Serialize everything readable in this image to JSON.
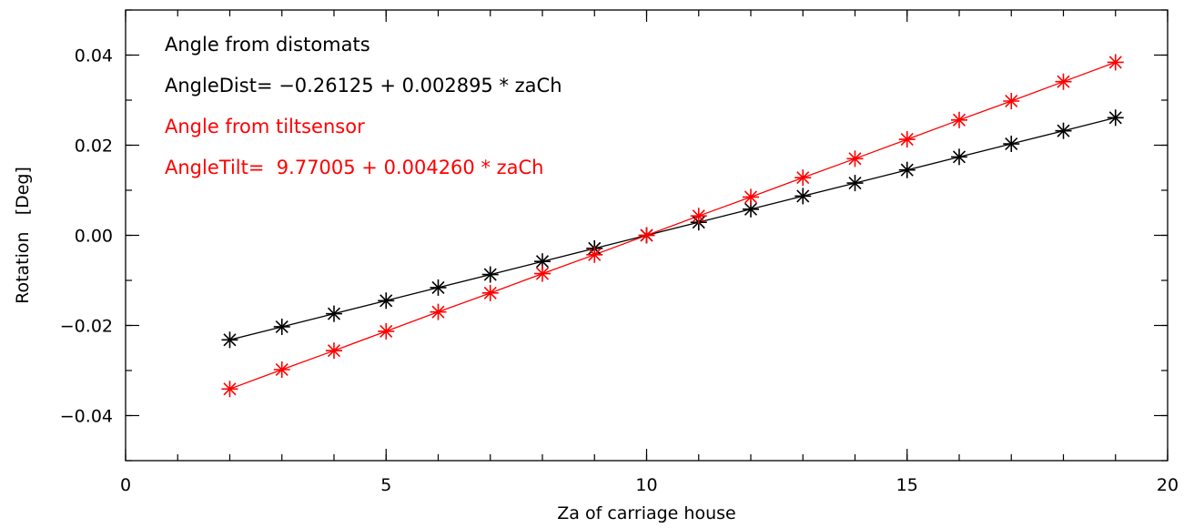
{
  "chart_data": {
    "type": "scatter",
    "title": "",
    "xlabel": "Za of carriage house",
    "ylabel": "Rotation   [Deg]",
    "xlim": [
      0,
      20
    ],
    "ylim": [
      -0.05,
      0.05
    ],
    "xticks": [
      0,
      5,
      10,
      15,
      20
    ],
    "xtick_labels": [
      "0",
      "5",
      "10",
      "15",
      "20"
    ],
    "yticks": [
      -0.04,
      -0.02,
      0.0,
      0.02,
      0.04
    ],
    "ytick_labels": [
      "−0.04",
      "−0.02",
      "0.00",
      "0.02",
      "0.04"
    ],
    "x_minor_step": 1,
    "y_minor_step": 0.01,
    "grid": false,
    "marker": "asterisk",
    "annotations": [
      {
        "text": "Angle from distomats",
        "color": "#000000"
      },
      {
        "text": "AngleDist= −0.26125 + 0.002895 * zaCh",
        "color": "#000000"
      },
      {
        "text": "Angle from tiltsensor",
        "color": "#ff0000"
      },
      {
        "text": "AngleTilt=  9.77005 + 0.004260 * zaCh",
        "color": "#ff0000"
      }
    ],
    "x": [
      2,
      3,
      4,
      5,
      6,
      7,
      8,
      9,
      10,
      11,
      12,
      13,
      14,
      15,
      16,
      17,
      18,
      19
    ],
    "series": [
      {
        "color": "#000000",
        "values": [
          -0.0232,
          -0.0203,
          -0.0174,
          -0.0145,
          -0.0116,
          -0.0087,
          -0.0058,
          -0.0029,
          0.0,
          0.0029,
          0.0058,
          0.0087,
          0.0116,
          0.0145,
          0.0174,
          0.0203,
          0.0232,
          0.0261
        ]
      },
      {
        "color": "#ff0000",
        "values": [
          -0.0341,
          -0.0298,
          -0.0256,
          -0.0213,
          -0.017,
          -0.0128,
          -0.0085,
          -0.0043,
          0.0,
          0.0043,
          0.0085,
          0.0128,
          0.017,
          0.0213,
          0.0256,
          0.0298,
          0.0341,
          0.0384
        ]
      }
    ]
  }
}
